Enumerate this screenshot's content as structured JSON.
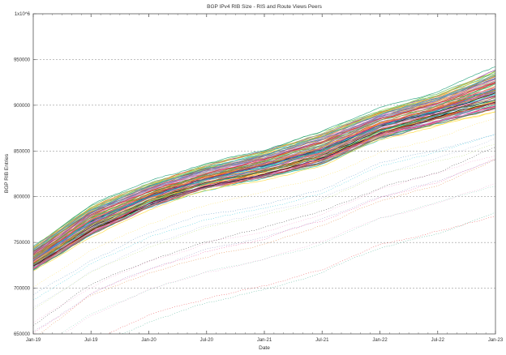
{
  "chart_data": {
    "type": "line",
    "title": "BGP IPv4 RIB Size - RIS and Route Views Peers",
    "xlabel": "Date",
    "ylabel": "BGP RIB Entries",
    "x": [
      "Jan-19",
      "Jul-19",
      "Jan-20",
      "Jul-20",
      "Jan-21",
      "Jul-21",
      "Jan-22",
      "Jul-22",
      "Jan-23"
    ],
    "xtick_labels": [
      "Jan-19",
      "Jul-19",
      "Jan-20",
      "Jul-20",
      "Jan-21",
      "Jul-21",
      "Jan-22",
      "Jul-22",
      "Jan-23"
    ],
    "ytick_labels": [
      "650000",
      "700000",
      "750000",
      "800000",
      "850000",
      "900000",
      "950000",
      "1x10^6"
    ],
    "ylim": [
      650000,
      1000000
    ],
    "grid": true,
    "series": [
      {
        "values": [
          745000,
          790000,
          815000,
          835000,
          850000,
          870000,
          895000,
          912000,
          940000
        ]
      },
      {
        "values": [
          730000,
          770000,
          800000,
          820000,
          835000,
          850000,
          877000,
          890000,
          910000
        ]
      },
      {
        "values": [
          720000,
          758000,
          788000,
          808000,
          820000,
          836000,
          864000,
          880000,
          895000
        ]
      }
    ],
    "peer_count_note": "",
    "colors": [
      "#e41a1c",
      "#377eb8",
      "#4daf4a",
      "#984ea3",
      "#ff7f00",
      "#a65628",
      "#f781bf",
      "#00bcd4",
      "#000000",
      "#66c2a5",
      "#8da0cb",
      "#e78ac3",
      "#a6d854",
      "#ffd92f",
      "#1b9e77",
      "#d95f02",
      "#7570b3",
      "#e7298a"
    ]
  }
}
